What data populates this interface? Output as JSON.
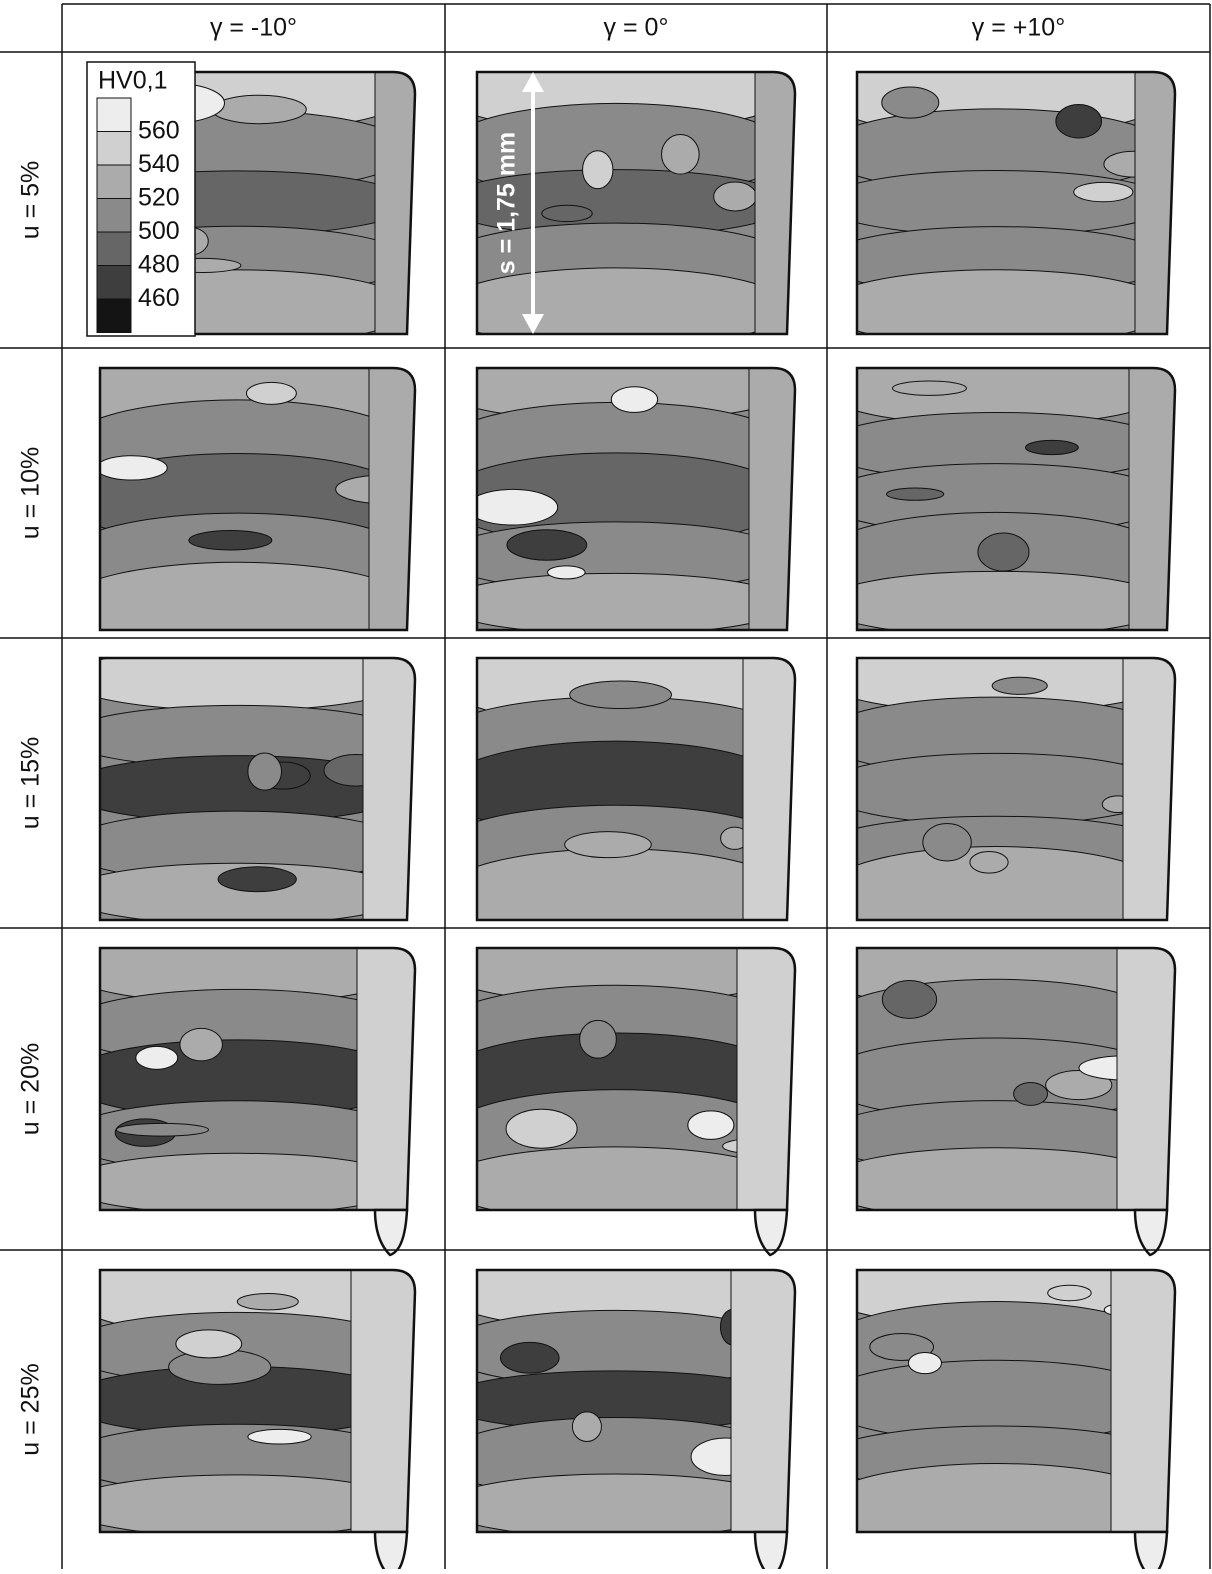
{
  "columns": [
    "γ = -10°",
    "γ = 0°",
    "γ = +10°"
  ],
  "rows": [
    "u = 5%",
    "u = 10%",
    "u = 15%",
    "u = 20%",
    "u = 25%"
  ],
  "legend": {
    "title": "HV0,1",
    "labels": [
      560,
      540,
      520,
      500,
      480,
      460
    ],
    "colors": [
      "#ededed",
      "#d0d0d0",
      "#ababab",
      "#8a8a8a",
      "#666666",
      "#3e3e3e",
      "#141414"
    ]
  },
  "annotation": "s = 1,75 mm"
}
